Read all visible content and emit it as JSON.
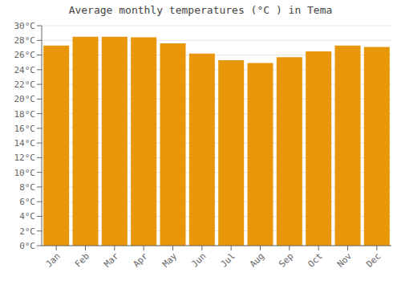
{
  "chart_data": {
    "type": "bar",
    "title": "Average monthly temperatures (°C ) in Tema",
    "categories": [
      "Jan",
      "Feb",
      "Mar",
      "Apr",
      "May",
      "Jun",
      "Jul",
      "Aug",
      "Sep",
      "Oct",
      "Nov",
      "Dec"
    ],
    "values": [
      27.3,
      28.5,
      28.5,
      28.4,
      27.6,
      26.2,
      25.3,
      24.9,
      25.7,
      26.5,
      27.3,
      27.1
    ],
    "color": "#E8960A",
    "ylim": [
      0,
      30
    ],
    "yticks": [
      {
        "value": 0,
        "label": "0°C"
      },
      {
        "value": 2,
        "label": "2°C"
      },
      {
        "value": 4,
        "label": "4°C"
      },
      {
        "value": 6,
        "label": "6°C"
      },
      {
        "value": 8,
        "label": "8°C"
      },
      {
        "value": 10,
        "label": "10°C"
      },
      {
        "value": 12,
        "label": "12°C"
      },
      {
        "value": 14,
        "label": "14°C"
      },
      {
        "value": 16,
        "label": "16°C"
      },
      {
        "value": 18,
        "label": "18°C"
      },
      {
        "value": 20,
        "label": "20°C"
      },
      {
        "value": 22,
        "label": "22°C"
      },
      {
        "value": 24,
        "label": "24°C"
      },
      {
        "value": 26,
        "label": "26°C"
      },
      {
        "value": 28,
        "label": "28°C"
      },
      {
        "value": 30,
        "label": "30°C"
      }
    ],
    "grid": true
  }
}
